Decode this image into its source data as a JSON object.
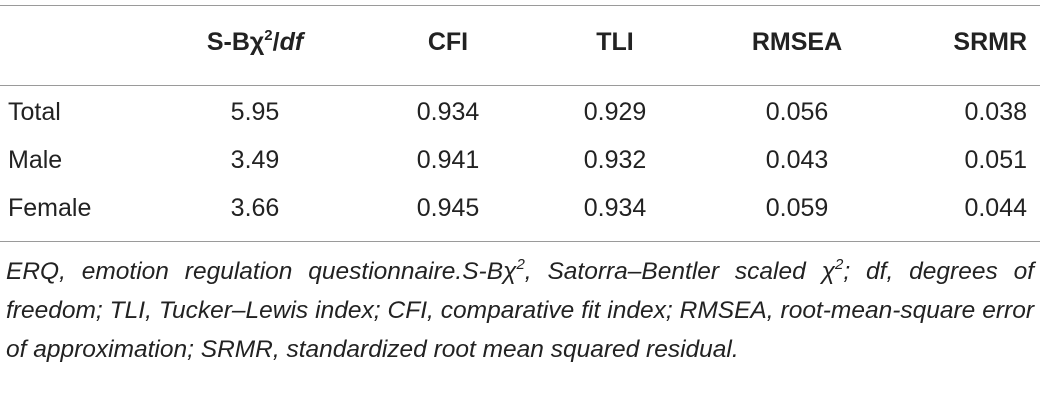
{
  "table": {
    "header": [
      {
        "base": "S-Bχ",
        "sup": "2",
        "slash": "/",
        "italic": "df"
      },
      "CFI",
      "TLI",
      "RMSEA",
      "SRMR"
    ],
    "rows": [
      [
        "Total",
        "5.95",
        "0.934",
        "0.929",
        "0.056",
        "0.038"
      ],
      [
        "Male",
        "3.49",
        "0.941",
        "0.932",
        "0.043",
        "0.051"
      ],
      [
        "Female",
        "3.66",
        "0.945",
        "0.934",
        "0.059",
        "0.044"
      ]
    ]
  },
  "footnote": [
    {
      "text": "ERQ, emotion regulation questionnaire.S-Bχ"
    },
    {
      "sup": "2"
    },
    {
      "text": ", Satorra–Bentler scaled χ"
    },
    {
      "sup": "2"
    },
    {
      "text": "; df, degrees of freedom; TLI, Tucker–Lewis index; CFI, comparative fit index; RMSEA, root-mean-square error of approximation; SRMR, standardized root mean squared residual."
    }
  ]
}
